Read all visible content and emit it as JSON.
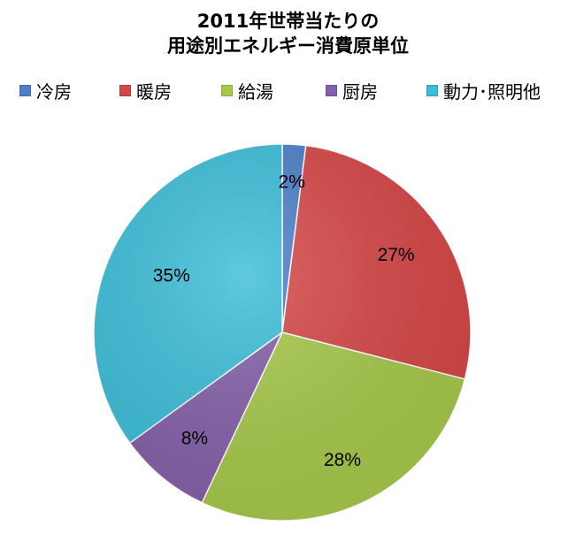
{
  "title": {
    "line1": "2011年世帯当たりの",
    "line2": "用途別エネルギー消費原単位"
  },
  "chart_data": {
    "type": "pie",
    "title": "2011年世帯当たりの 用途別エネルギー消費原単位",
    "categories": [
      "冷房",
      "暖房",
      "給湯",
      "厨房",
      "動力･照明他"
    ],
    "values": [
      2,
      27,
      28,
      8,
      35
    ],
    "value_labels": [
      "2%",
      "27%",
      "28%",
      "8%",
      "35%"
    ],
    "colors": [
      "#4a7fc8",
      "#d64646",
      "#a6c84a",
      "#8460a8",
      "#3bbdd8"
    ],
    "legend_position": "top",
    "start_angle_deg": 0,
    "direction": "clockwise"
  }
}
